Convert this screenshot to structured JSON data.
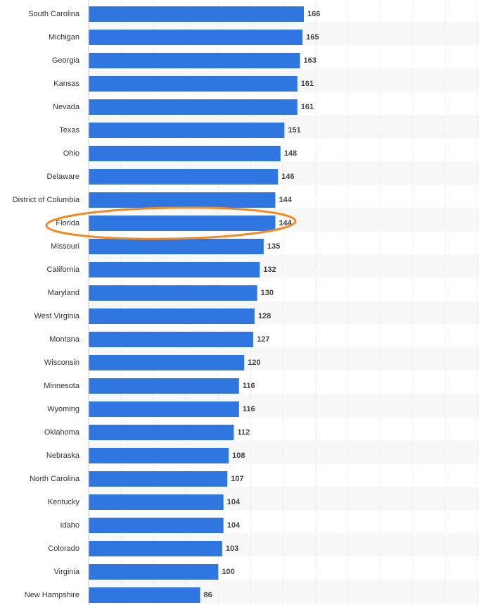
{
  "chart_data": {
    "type": "bar",
    "orientation": "horizontal",
    "categories": [
      "South Carolina",
      "Michigan",
      "Georgia",
      "Kansas",
      "Nevada",
      "Texas",
      "Ohio",
      "Delaware",
      "District of Columbia",
      "Florida",
      "Missouri",
      "California",
      "Maryland",
      "West Virginia",
      "Montana",
      "Wisconsin",
      "Minnesota",
      "Wyoming",
      "Oklahoma",
      "Nebraska",
      "North Carolina",
      "Kentucky",
      "Idaho",
      "Colorado",
      "Virginia",
      "New Hampshire"
    ],
    "values": [
      166,
      165,
      163,
      161,
      161,
      151,
      148,
      146,
      144,
      144,
      135,
      132,
      130,
      128,
      127,
      120,
      116,
      116,
      112,
      108,
      107,
      104,
      104,
      103,
      100,
      86
    ],
    "color": "#2f76e0",
    "xlim": [
      0,
      300
    ],
    "xticks": [
      25,
      50,
      75,
      100,
      125,
      150,
      175,
      200,
      225,
      250,
      275,
      300
    ],
    "grid": true
  }
}
